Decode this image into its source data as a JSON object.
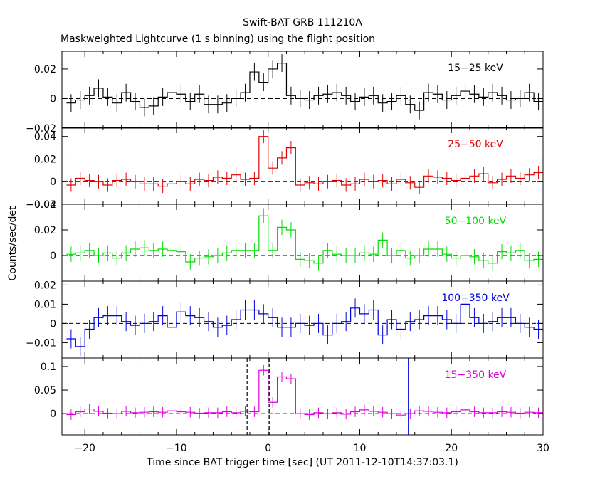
{
  "chart_data": {
    "type": "line",
    "title": "Swift-BAT GRB 111210A",
    "subtitle": "Maskweighted Lightcurve (1 s binning) using the flight position",
    "xlabel": "Time since BAT trigger time [sec] (UT 2011-12-10T14:37:03.1)",
    "ylabel": "Counts/sec/det",
    "xlim": [
      -22.5,
      30
    ],
    "xticks": [
      -20,
      -10,
      0,
      10,
      20,
      30
    ],
    "x": [
      -22,
      -21,
      -20,
      -19,
      -18,
      -17,
      -16,
      -15,
      -14,
      -13,
      -12,
      -11,
      -10,
      -9,
      -8,
      -7,
      -6,
      -5,
      -4,
      -3,
      -2,
      -1,
      0,
      1,
      2,
      3,
      4,
      5,
      6,
      7,
      8,
      9,
      10,
      11,
      12,
      13,
      14,
      15,
      16,
      17,
      18,
      19,
      20,
      21,
      22,
      23,
      24,
      25,
      26,
      27,
      28,
      29
    ],
    "vlines_dashed_green": [
      -2.3,
      0.1
    ],
    "vline_blue": 15.3,
    "panels": [
      {
        "name": "15−25 keV",
        "color": "#000000",
        "ylim": [
          -0.02,
          0.032
        ],
        "yticks": [
          -0.02,
          0,
          0.02
        ],
        "ytick_labels": [
          "−0.02",
          "0",
          "0.02"
        ],
        "error": 0.006,
        "values": [
          -0.003,
          -0.001,
          0.002,
          0.007,
          0.001,
          -0.003,
          0.004,
          -0.002,
          -0.006,
          -0.005,
          0.001,
          0.004,
          0.003,
          -0.002,
          0.003,
          -0.004,
          -0.004,
          -0.003,
          0.0,
          0.004,
          0.018,
          0.011,
          0.02,
          0.024,
          0.002,
          0.0,
          -0.001,
          0.002,
          0.003,
          0.004,
          0.002,
          -0.002,
          0.001,
          0.002,
          -0.003,
          -0.002,
          0.002,
          -0.004,
          -0.008,
          0.004,
          0.003,
          -0.001,
          0.002,
          0.005,
          0.003,
          0.001,
          0.004,
          0.002,
          -0.001,
          0.0,
          0.004,
          -0.002
        ]
      },
      {
        "name": "25−50 keV",
        "color": "#dd0000",
        "ylim": [
          -0.02,
          0.048
        ],
        "yticks": [
          -0.02,
          0,
          0.02,
          0.04
        ],
        "ytick_labels": [
          "−0.02",
          "0",
          "0.02",
          "0.04"
        ],
        "error": 0.006,
        "values": [
          -0.003,
          0.003,
          0.001,
          0.0,
          -0.003,
          0.001,
          0.002,
          0.0,
          -0.002,
          -0.002,
          -0.004,
          -0.002,
          0.0,
          -0.002,
          0.002,
          0.001,
          0.004,
          0.003,
          0.006,
          0.002,
          0.003,
          0.04,
          0.012,
          0.021,
          0.03,
          -0.003,
          -0.001,
          -0.002,
          0.0,
          0.001,
          -0.003,
          -0.002,
          0.002,
          0.0,
          0.001,
          -0.002,
          0.002,
          -0.001,
          -0.005,
          0.005,
          0.004,
          0.003,
          0.001,
          0.003,
          0.005,
          0.007,
          -0.001,
          0.002,
          0.005,
          0.003,
          0.006,
          0.008
        ]
      },
      {
        "name": "50−100 keV",
        "color": "#00dd00",
        "ylim": [
          -0.02,
          0.04
        ],
        "yticks": [
          0,
          0.02,
          0.04
        ],
        "ytick_labels": [
          "0",
          "0.02",
          "0.04"
        ],
        "error": 0.006,
        "values": [
          0.001,
          0.002,
          0.004,
          0.0,
          0.002,
          -0.002,
          0.002,
          0.005,
          0.006,
          0.004,
          0.005,
          0.004,
          0.003,
          -0.005,
          -0.002,
          -0.001,
          0.0,
          0.002,
          0.004,
          0.004,
          0.004,
          0.031,
          0.004,
          0.022,
          0.02,
          -0.003,
          -0.004,
          -0.006,
          0.004,
          0.001,
          0.0,
          0.0,
          0.002,
          0.001,
          0.012,
          0.0,
          0.004,
          -0.002,
          0.0,
          0.005,
          0.005,
          0.001,
          -0.002,
          0.0,
          -0.001,
          -0.004,
          -0.006,
          0.003,
          0.002,
          0.004,
          -0.004,
          -0.003
        ]
      },
      {
        "name": "100−350 keV",
        "color": "#0000dd",
        "ylim": [
          -0.018,
          0.022
        ],
        "yticks": [
          -0.01,
          0,
          0.01,
          0.02
        ],
        "ytick_labels": [
          "−0.01",
          "0",
          "0.01",
          "0.02"
        ],
        "error": 0.005,
        "values": [
          -0.008,
          -0.012,
          -0.003,
          0.003,
          0.004,
          0.004,
          0.001,
          -0.001,
          0.0,
          0.001,
          0.004,
          -0.002,
          0.006,
          0.004,
          0.003,
          0.001,
          -0.002,
          -0.001,
          0.002,
          0.007,
          0.007,
          0.005,
          0.003,
          -0.002,
          -0.002,
          0.0,
          -0.001,
          0.0,
          -0.006,
          0.0,
          0.001,
          0.008,
          0.005,
          0.007,
          -0.006,
          0.002,
          -0.003,
          0.001,
          0.002,
          0.004,
          0.004,
          0.002,
          0.0,
          0.01,
          0.003,
          0.0,
          0.001,
          0.003,
          0.003,
          0.0,
          -0.002,
          -0.003
        ]
      },
      {
        "name": "15−350 keV",
        "color": "#dd00dd",
        "ylim": [
          -0.045,
          0.118
        ],
        "yticks": [
          0,
          0.05,
          0.1
        ],
        "ytick_labels": [
          "0",
          "0.05",
          "0.1"
        ],
        "error": 0.011,
        "values": [
          -0.002,
          0.004,
          0.01,
          0.005,
          0.001,
          0.0,
          0.005,
          0.002,
          0.003,
          0.004,
          0.003,
          0.006,
          0.004,
          0.003,
          0.001,
          0.002,
          0.002,
          0.004,
          0.002,
          0.005,
          0.004,
          0.092,
          0.024,
          0.078,
          0.074,
          0.0,
          -0.002,
          0.002,
          0.0,
          0.002,
          -0.001,
          0.004,
          0.008,
          0.005,
          0.003,
          0.0,
          -0.003,
          0.0,
          0.006,
          0.005,
          0.003,
          0.002,
          0.004,
          0.008,
          0.004,
          0.002,
          0.002,
          0.004,
          0.003,
          0.001,
          0.003,
          0.002
        ]
      }
    ]
  }
}
